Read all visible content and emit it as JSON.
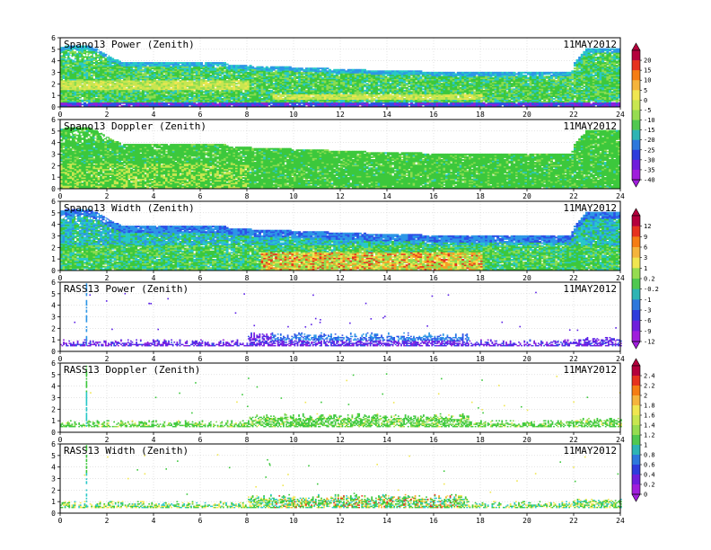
{
  "figure": {
    "date_label": "11MAY2012"
  },
  "chart_data": [
    {
      "type": "heatmap",
      "title": "Spano13 Power (Zenith)",
      "date": "11MAY2012",
      "x_ticks": [
        0,
        2,
        4,
        6,
        8,
        10,
        12,
        14,
        16,
        18,
        20,
        22,
        24
      ],
      "y_ticks": [
        0,
        1,
        2,
        3,
        4,
        5,
        6
      ],
      "xlim": [
        0,
        24
      ],
      "ylim": [
        0,
        6
      ],
      "colorbar": "power",
      "top_boundary": [
        [
          0,
          5.2
        ],
        [
          1.2,
          5.3
        ],
        [
          2.6,
          3.8
        ],
        [
          7,
          3.8
        ],
        [
          7.2,
          3.6
        ],
        [
          10,
          3.4
        ],
        [
          14,
          3.1
        ],
        [
          17,
          3.0
        ],
        [
          18,
          2.95
        ],
        [
          21.8,
          3.0
        ],
        [
          22,
          3.8
        ],
        [
          22.5,
          5.0
        ],
        [
          24,
          5.0
        ]
      ],
      "dense_band": [
        0.5,
        2.6
      ],
      "mode": "power"
    },
    {
      "type": "heatmap",
      "title": "Spano13 Doppler (Zenith)",
      "date": "11MAY2012",
      "x_ticks": [
        0,
        2,
        4,
        6,
        8,
        10,
        12,
        14,
        16,
        18,
        20,
        22,
        24
      ],
      "y_ticks": [
        0,
        1,
        2,
        3,
        4,
        5,
        6
      ],
      "xlim": [
        0,
        24
      ],
      "ylim": [
        0,
        6
      ],
      "colorbar": "power",
      "top_boundary": [
        [
          0,
          5.2
        ],
        [
          1.2,
          5.3
        ],
        [
          2.6,
          3.8
        ],
        [
          7,
          3.8
        ],
        [
          7.2,
          3.6
        ],
        [
          10,
          3.4
        ],
        [
          14,
          3.1
        ],
        [
          17,
          3.0
        ],
        [
          18,
          2.95
        ],
        [
          21.8,
          3.0
        ],
        [
          22,
          3.8
        ],
        [
          22.5,
          5.0
        ],
        [
          24,
          5.0
        ]
      ],
      "mode": "doppler"
    },
    {
      "type": "heatmap",
      "title": "Spano13 Width (Zenith)",
      "date": "11MAY2012",
      "x_ticks": [
        0,
        2,
        4,
        6,
        8,
        10,
        12,
        14,
        16,
        18,
        20,
        22,
        24
      ],
      "y_ticks": [
        0,
        1,
        2,
        3,
        4,
        5,
        6
      ],
      "xlim": [
        0,
        24
      ],
      "ylim": [
        0,
        6
      ],
      "colorbar": "width",
      "top_boundary": [
        [
          0,
          5.2
        ],
        [
          1.2,
          5.3
        ],
        [
          2.6,
          3.8
        ],
        [
          7,
          3.8
        ],
        [
          7.2,
          3.6
        ],
        [
          10,
          3.4
        ],
        [
          14,
          3.1
        ],
        [
          17,
          3.0
        ],
        [
          18,
          2.95
        ],
        [
          21.8,
          3.0
        ],
        [
          22,
          3.8
        ],
        [
          22.5,
          5.0
        ],
        [
          24,
          5.0
        ]
      ],
      "mode": "width"
    },
    {
      "type": "heatmap",
      "title": "RASS13 Power (Zenith)",
      "date": "11MAY2012",
      "x_ticks": [
        0,
        2,
        4,
        6,
        8,
        10,
        12,
        14,
        16,
        18,
        20,
        22,
        24
      ],
      "y_ticks": [
        0,
        1,
        2,
        3,
        4,
        5,
        6
      ],
      "xlim": [
        0,
        24
      ],
      "ylim": [
        0,
        6
      ],
      "colorbar": "none",
      "mode": "rass_power"
    },
    {
      "type": "heatmap",
      "title": "RASS13 Doppler (Zenith)",
      "date": "11MAY2012",
      "x_ticks": [
        0,
        2,
        4,
        6,
        8,
        10,
        12,
        14,
        16,
        18,
        20,
        22,
        24
      ],
      "y_ticks": [
        0,
        1,
        2,
        3,
        4,
        5,
        6
      ],
      "xlim": [
        0,
        24
      ],
      "ylim": [
        0,
        6
      ],
      "colorbar": "rass",
      "mode": "rass_doppler"
    },
    {
      "type": "heatmap",
      "title": "RASS13 Width (Zenith)",
      "date": "11MAY2012",
      "x_ticks": [
        0,
        2,
        4,
        6,
        8,
        10,
        12,
        14,
        16,
        18,
        20,
        22,
        24
      ],
      "y_ticks": [
        0,
        1,
        2,
        3,
        4,
        5,
        6
      ],
      "xlim": [
        0,
        24
      ],
      "ylim": [
        0,
        6
      ],
      "colorbar": "none",
      "mode": "rass_width"
    }
  ],
  "colorbars": [
    {
      "id": "power",
      "labels": [
        "20",
        "15",
        "10",
        "5",
        "0",
        "-5",
        "-10",
        "-15",
        "-20",
        "-25",
        "-30",
        "-35",
        "-40"
      ],
      "colors": [
        "#b4003c",
        "#e6321e",
        "#f57d14",
        "#f5b43c",
        "#f0e650",
        "#c8e650",
        "#96dc50",
        "#50c850",
        "#2db4b4",
        "#2d78dc",
        "#2d3cdc",
        "#6e1edc",
        "#a01edc"
      ]
    },
    {
      "id": "width",
      "labels": [
        "12",
        "9",
        "6",
        "3",
        "1",
        "0.2",
        "-0.2",
        "-1",
        "-3",
        "-6",
        "-9",
        "-12"
      ],
      "colors": [
        "#b4003c",
        "#e6321e",
        "#f57d14",
        "#f5b43c",
        "#f0e650",
        "#96dc50",
        "#50c850",
        "#2db4b4",
        "#2d78dc",
        "#2d3cdc",
        "#6e1edc",
        "#a01edc"
      ]
    },
    {
      "id": "rass",
      "labels": [
        "2.4",
        "2.2",
        "2",
        "1.8",
        "1.6",
        "1.4",
        "1.2",
        "1",
        "0.8",
        "0.6",
        "0.4",
        "0.2",
        "0"
      ],
      "colors": [
        "#b4003c",
        "#e6321e",
        "#f57d14",
        "#f5b43c",
        "#f0e650",
        "#c8e650",
        "#96dc50",
        "#50c850",
        "#2db4b4",
        "#2d78dc",
        "#2d3cdc",
        "#6e1edc",
        "#a01edc"
      ]
    }
  ]
}
